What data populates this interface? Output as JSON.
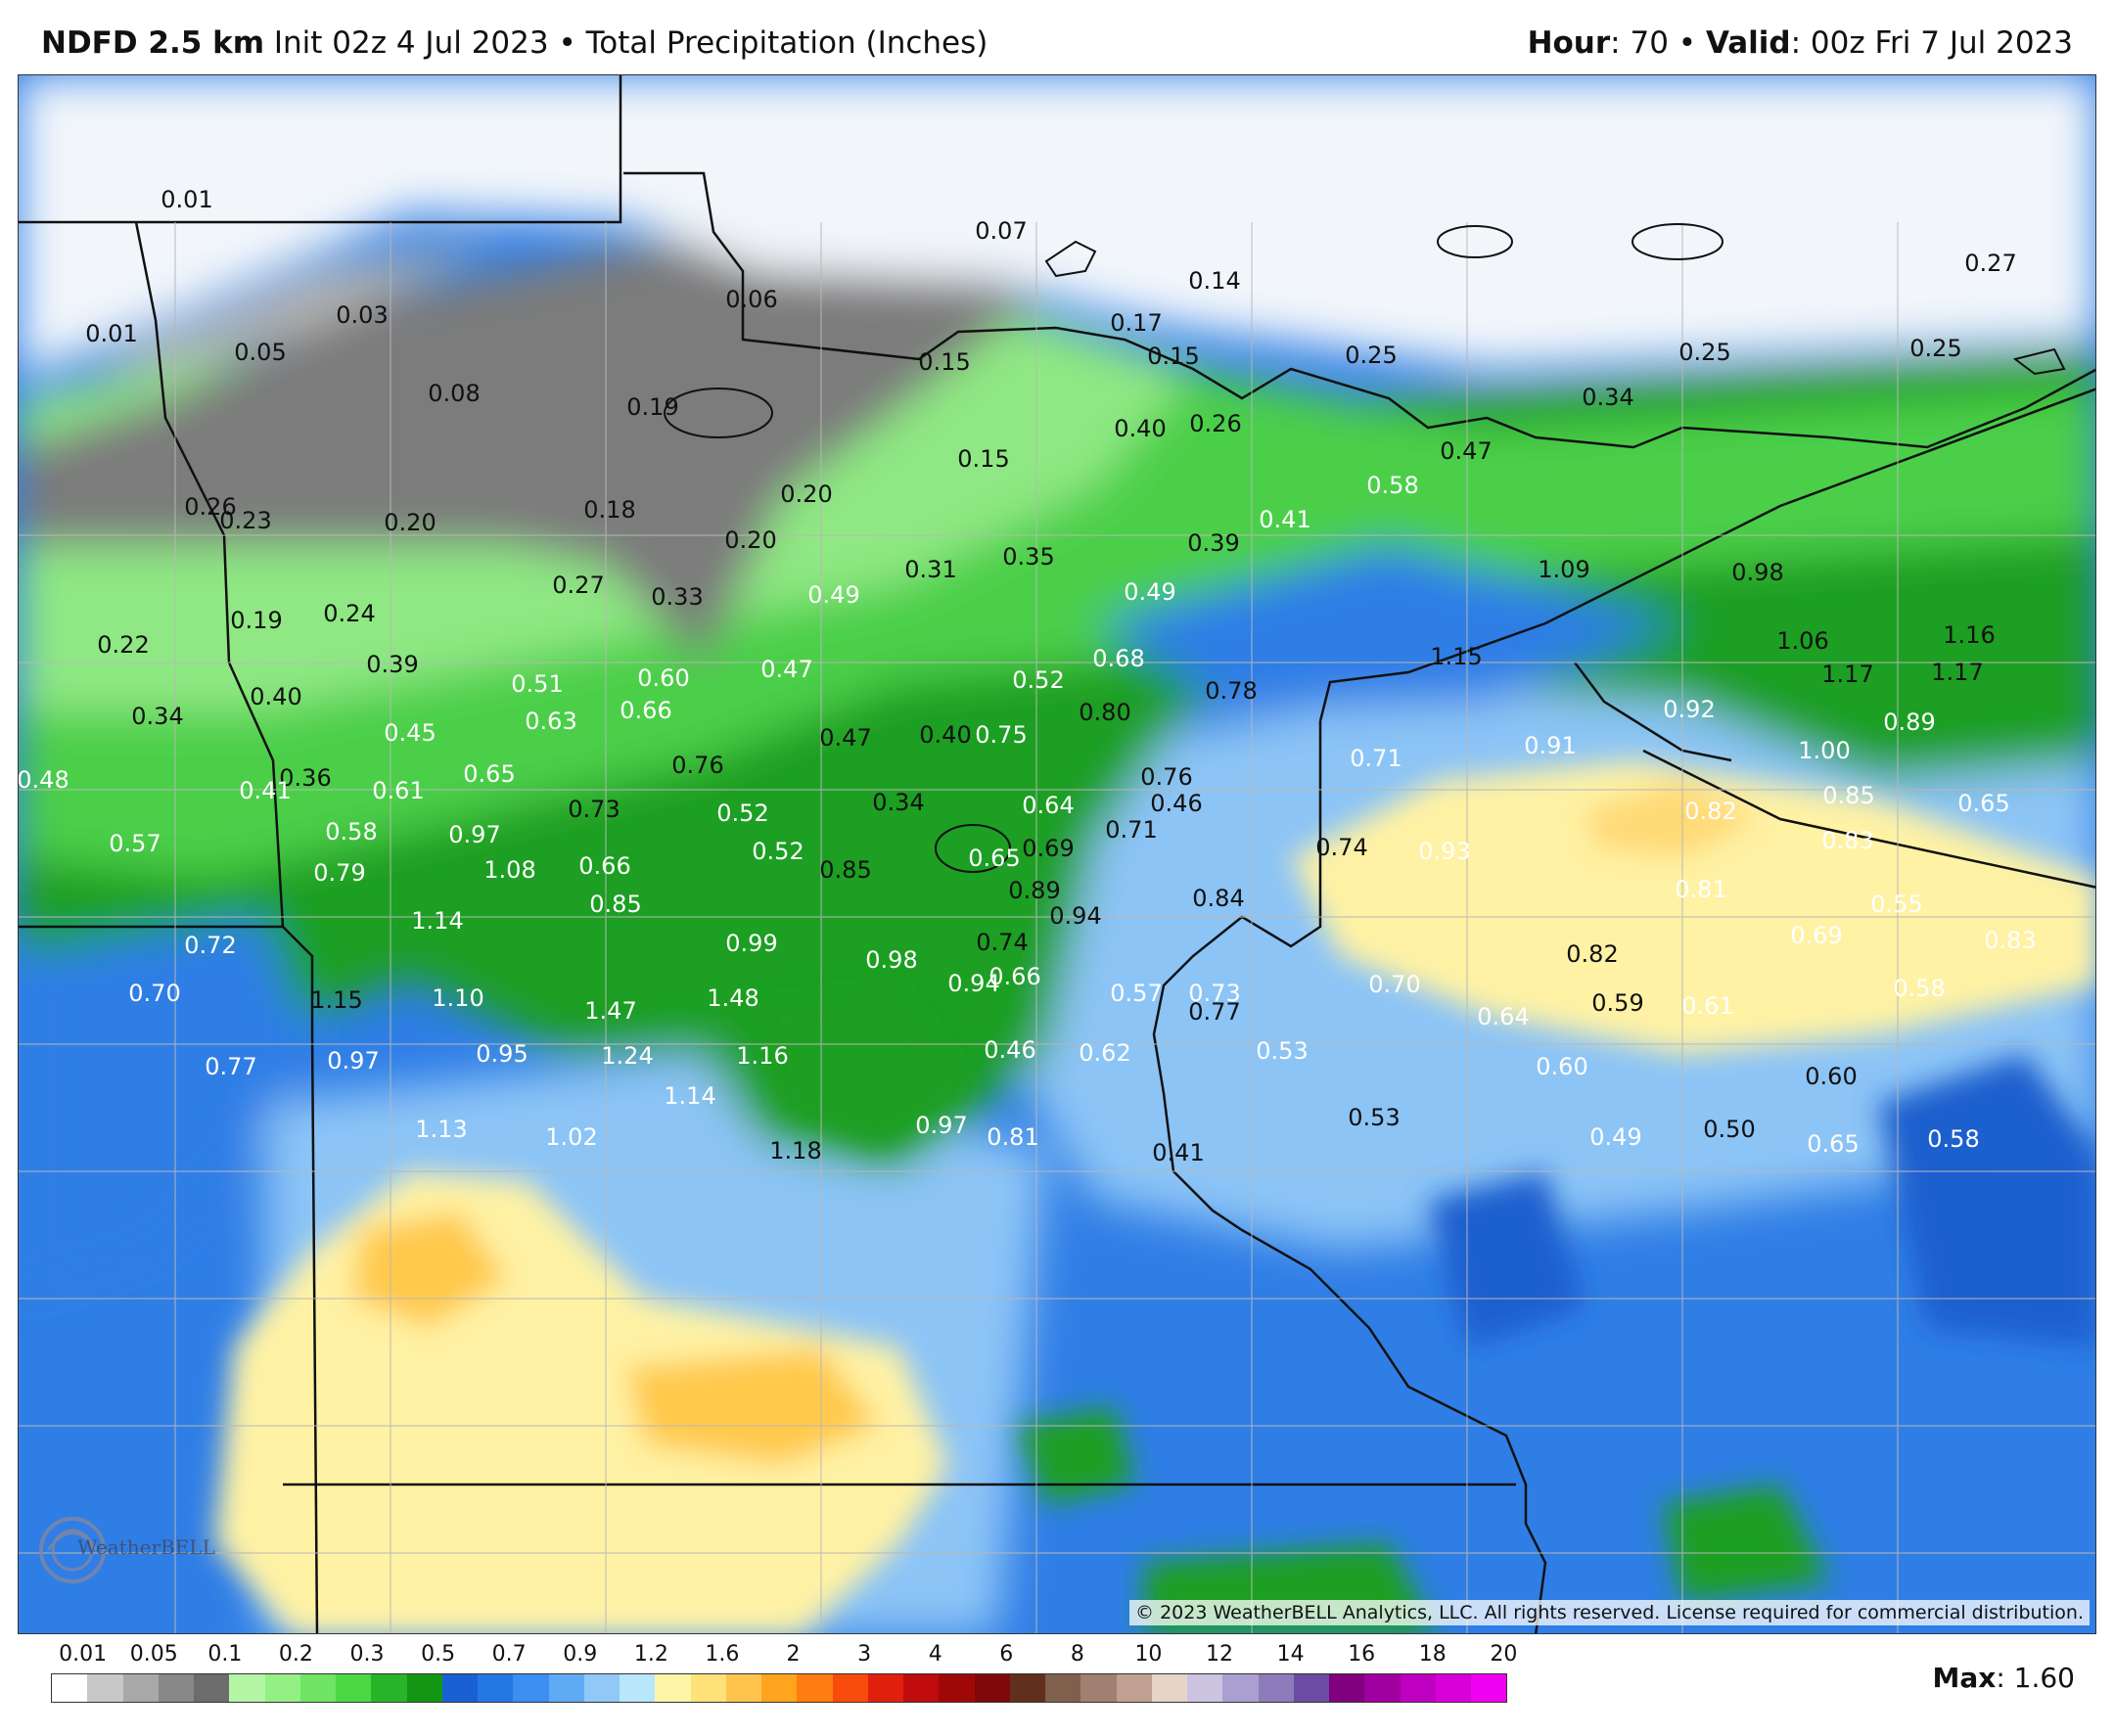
{
  "header": {
    "model": "NDFD 2.5 km",
    "init": "Init 02z 4 Jul 2023",
    "separator": "•",
    "product": "Total Precipitation (Inches)",
    "hour_label": "Hour",
    "hour_value": ": 70",
    "valid_label": "Valid",
    "valid_value": ": 00z Fri 7 Jul 2023"
  },
  "map": {
    "copyright": "© 2023 WeatherBELL Analytics, LLC. All rights reserved. License required for commercial distribution.",
    "logo_text": "WeatherBELL",
    "labels": [
      {
        "text": "0.01"
      },
      {
        "text": "0.01"
      },
      {
        "text": "0.03"
      },
      {
        "text": "0.05"
      },
      {
        "text": "0.08"
      },
      {
        "text": "0.06"
      },
      {
        "text": "0.07"
      },
      {
        "text": "0.14"
      },
      {
        "text": "0.17"
      },
      {
        "text": "0.15"
      },
      {
        "text": "0.15"
      },
      {
        "text": "0.19"
      },
      {
        "text": "0.25"
      },
      {
        "text": "0.25"
      },
      {
        "text": "0.25"
      },
      {
        "text": "0.27"
      },
      {
        "text": "0.34"
      },
      {
        "text": "0.40"
      },
      {
        "text": "0.26"
      },
      {
        "text": "0.15"
      },
      {
        "text": "0.47"
      },
      {
        "text": "0.58"
      },
      {
        "text": "0.26"
      },
      {
        "text": "0.23"
      },
      {
        "text": "0.20"
      },
      {
        "text": "0.18"
      },
      {
        "text": "0.20"
      },
      {
        "text": "0.20"
      },
      {
        "text": "0.41"
      },
      {
        "text": "0.39"
      },
      {
        "text": "0.31"
      },
      {
        "text": "0.35"
      },
      {
        "text": "1.09"
      },
      {
        "text": "0.98"
      },
      {
        "text": "0.27"
      },
      {
        "text": "0.33"
      },
      {
        "text": "0.49"
      },
      {
        "text": "0.49"
      },
      {
        "text": "0.19"
      },
      {
        "text": "0.24"
      },
      {
        "text": "0.22"
      },
      {
        "text": "1.06"
      },
      {
        "text": "1.16"
      },
      {
        "text": "0.68"
      },
      {
        "text": "1.15"
      },
      {
        "text": "0.39"
      },
      {
        "text": "0.47"
      },
      {
        "text": "0.52"
      },
      {
        "text": "1.17"
      },
      {
        "text": "1.17"
      },
      {
        "text": "0.51"
      },
      {
        "text": "0.60"
      },
      {
        "text": "0.78"
      },
      {
        "text": "0.40"
      },
      {
        "text": "0.34"
      },
      {
        "text": "0.66"
      },
      {
        "text": "0.80"
      },
      {
        "text": "0.92"
      },
      {
        "text": "0.63"
      },
      {
        "text": "0.89"
      },
      {
        "text": "0.45"
      },
      {
        "text": "0.47"
      },
      {
        "text": "0.40"
      },
      {
        "text": "0.75"
      },
      {
        "text": "0.91"
      },
      {
        "text": "1.00"
      },
      {
        "text": "0.71"
      },
      {
        "text": "0.76"
      },
      {
        "text": "0.48"
      },
      {
        "text": "0.36"
      },
      {
        "text": "0.65"
      },
      {
        "text": "0.76"
      },
      {
        "text": "0.41"
      },
      {
        "text": "0.61"
      },
      {
        "text": "0.85"
      },
      {
        "text": "0.73"
      },
      {
        "text": "0.34"
      },
      {
        "text": "0.52"
      },
      {
        "text": "0.64"
      },
      {
        "text": "0.46"
      },
      {
        "text": "0.82"
      },
      {
        "text": "0.65"
      },
      {
        "text": "0.58"
      },
      {
        "text": "0.97"
      },
      {
        "text": "0.71"
      },
      {
        "text": "0.57"
      },
      {
        "text": "0.83"
      },
      {
        "text": "0.74"
      },
      {
        "text": "0.93"
      },
      {
        "text": "0.52"
      },
      {
        "text": "0.69"
      },
      {
        "text": "1.08"
      },
      {
        "text": "0.65"
      },
      {
        "text": "0.66"
      },
      {
        "text": "0.79"
      },
      {
        "text": "0.85"
      },
      {
        "text": "0.89"
      },
      {
        "text": "0.84"
      },
      {
        "text": "0.81"
      },
      {
        "text": "0.85"
      },
      {
        "text": "0.55"
      },
      {
        "text": "1.14"
      },
      {
        "text": "0.94"
      },
      {
        "text": "0.72"
      },
      {
        "text": "0.99"
      },
      {
        "text": "0.69"
      },
      {
        "text": "0.83"
      },
      {
        "text": "0.74"
      },
      {
        "text": "0.82"
      },
      {
        "text": "0.98"
      },
      {
        "text": "0.94"
      },
      {
        "text": "0.66"
      },
      {
        "text": "0.70"
      },
      {
        "text": "0.70"
      },
      {
        "text": "1.15"
      },
      {
        "text": "1.10"
      },
      {
        "text": "1.48"
      },
      {
        "text": "0.57"
      },
      {
        "text": "0.73"
      },
      {
        "text": "0.58"
      },
      {
        "text": "1.47"
      },
      {
        "text": "0.77"
      },
      {
        "text": "0.59"
      },
      {
        "text": "0.61"
      },
      {
        "text": "0.64"
      },
      {
        "text": "0.46"
      },
      {
        "text": "0.62"
      },
      {
        "text": "0.53"
      },
      {
        "text": "0.77"
      },
      {
        "text": "0.97"
      },
      {
        "text": "0.95"
      },
      {
        "text": "1.24"
      },
      {
        "text": "1.16"
      },
      {
        "text": "0.60"
      },
      {
        "text": "0.60"
      },
      {
        "text": "1.14"
      },
      {
        "text": "0.53"
      },
      {
        "text": "1.13"
      },
      {
        "text": "1.02"
      },
      {
        "text": "0.97"
      },
      {
        "text": "0.81"
      },
      {
        "text": "0.50"
      },
      {
        "text": "0.49"
      },
      {
        "text": "0.65"
      },
      {
        "text": "0.58"
      },
      {
        "text": "1.18"
      },
      {
        "text": "0.41"
      }
    ]
  },
  "legend": {
    "ticks": [
      "0.01",
      "0.05",
      "0.1",
      "0.2",
      "0.3",
      "0.5",
      "0.7",
      "0.9",
      "1.2",
      "1.6",
      "2",
      "3",
      "4",
      "6",
      "8",
      "10",
      "12",
      "14",
      "16",
      "18",
      "20"
    ],
    "colors": [
      "#ffffff",
      "#c8c8c8",
      "#a8a8a8",
      "#888888",
      "#6c6c6c",
      "#b4f5a4",
      "#94ef84",
      "#70e464",
      "#4cd844",
      "#28b428",
      "#129614",
      "#1860d4",
      "#2478e4",
      "#3c8ef0",
      "#60aaf4",
      "#90c8f8",
      "#b8e6fa",
      "#fff5a8",
      "#ffe27a",
      "#ffc44c",
      "#ffa41c",
      "#ff7c10",
      "#f84c0c",
      "#e0200c",
      "#c00c0c",
      "#a00808",
      "#800808",
      "#60301c",
      "#80604c",
      "#a08070",
      "#c0a090",
      "#e8d4c4",
      "#cac4e0",
      "#ab9ed0",
      "#8c7cbc",
      "#6c4ca4",
      "#800080",
      "#a000a0",
      "#c000c0",
      "#d800d8",
      "#f000f0"
    ],
    "max_label": "Max",
    "max_value": ": 1.60"
  }
}
